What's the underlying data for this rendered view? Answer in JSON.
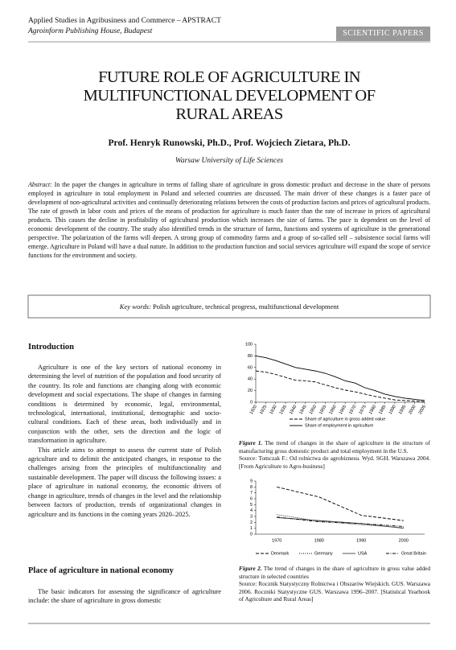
{
  "header": {
    "journal": "Applied Studies in Agribusiness and Commerce – APSTRACT",
    "publisher": "Agroinform Publishing House, Budapest",
    "section": "SCIENTIFIC PAPERS"
  },
  "title": "FUTURE ROLE OF AGRICULTURE IN MULTIFUNCTIONAL DEVELOPMENT OF RURAL AREAS",
  "authors": "Prof. Henryk Runowski, Ph.D., Prof. Wojciech Zietara, Ph.D.",
  "affiliation": "Warsaw University of Life Sciences",
  "abstract": {
    "label": "Abstract:",
    "text": "In the paper the changes in agriculture in terms of falling share of agriculture in gross domestic product and decrease in the share of persons employed in agriculture in total employment in Poland and selected countries are discussed. The main driver of these changes is a faster pace of development of non-agricultural activities and continually deteriorating relations between the costs of production factors and prices of agricultural products. The rate of growth in labor costs and prices of the means of production for agriculture is much faster than the rate of increase in prices of agricultural products. This causes the decline in profitability of agricultural production which increases the size of farms. The pace is dependent on the level of economic development of the country. The study also identified trends in the structure of farms, functions and systems of agriculture in the generational perspective. The polarization of the farms will deepen. A strong group of commodity farms and a group of so-called self – subsistence social farms will emerge. Agriculture in Poland will have a dual nature. In addition to the production function and social services agriculture will expand the scope of service functions for the environment and society."
  },
  "keywords": {
    "label": "Key words:",
    "text": "Polish agriculture, technical progress, multifunctional development"
  },
  "introduction": {
    "heading": "Introduction",
    "paragraphs": [
      "Agriculture is one of the key sectors of national economy in determining the level of nutrition of the population and food security of the country. Its role and functions are changing along with economic development and social expectations. The shape of changes in farming conditions is determined by economic, legal, environmental, technological, international, institutional, demographic and socio-cultural conditions. Each of these areas, both individually and in conjunction with the other, sets the direction and the logic of transformation in agriculture.",
      "This article aims to attempt to assess the current state of Polish agriculture and to delimit the anticipated changes, in response to the challenges arising from the principles of multifunctionality and sustainable development. The paper will discuss the following issues: a place of agriculture in national economy, the economic drivers of change in agriculture, trends of changes in the level and the relationship between factors of production, trends of organizational changes in agriculture and its functions in the coming years 2020–2025."
    ]
  },
  "section2": {
    "heading": "Place of agriculture in national economy",
    "paragraphs": [
      "The basic indicators for assessing the significance of agriculture include: the share of agriculture in gross domestic"
    ]
  },
  "figures": [
    {
      "label": "Figure 1.",
      "caption": "The trend of changes in the share of agriculture in the structure of manufacturing gross domestic product and total employment in the U.S.",
      "source": "Source: Tomczak F.: Od rolnictwa do agrobiznesu. Wyd. SGH. Warszawa 2004. [From Agriculture to Agro-business]"
    },
    {
      "label": "Figure 2.",
      "caption": "The trend of changes in the share of agriculture in gross value added structure in selected countries",
      "source": "Source: Rocznik Statystyczny Rolnictwa i Obszarów Wiejskich. GUS. Warszawa 2006. Roczniki Statystyczne GUS. Warszawa 1996–2007. [Statistical Yearbook of Agriculture and Rural Areas]"
    }
  ],
  "chart_data": [
    {
      "type": "line",
      "x": [
        1920,
        1925,
        1930,
        1935,
        1940,
        1945,
        1950,
        1955,
        1960,
        1965,
        1970,
        1975,
        1980,
        1985,
        1990,
        1995,
        2000,
        2005
      ],
      "xlim": [
        1920,
        2005
      ],
      "xticks": [
        1920,
        1925,
        1930,
        1935,
        1940,
        1945,
        1950,
        1955,
        1960,
        1965,
        1970,
        1975,
        1980,
        1985,
        1990,
        1995,
        2000,
        2005
      ],
      "ylim": [
        0,
        100
      ],
      "yticks": [
        0,
        20,
        40,
        60,
        80,
        100
      ],
      "grid": false,
      "series": [
        {
          "name": "Share of agriculture in gross added value",
          "color": "#000000",
          "dash": "dashed",
          "values": [
            54,
            52,
            48,
            43,
            38,
            37,
            35,
            30,
            25,
            21,
            18,
            14,
            10,
            7,
            4,
            3,
            2,
            1
          ]
        },
        {
          "name": "Share of employment in agriculture",
          "color": "#000000",
          "dash": "solid",
          "values": [
            80,
            77,
            72,
            66,
            60,
            57,
            54,
            50,
            44,
            37,
            33,
            25,
            20,
            14,
            10,
            7,
            5,
            3
          ]
        }
      ]
    },
    {
      "type": "line",
      "categories": [
        "1970",
        "1980",
        "1990",
        "2000"
      ],
      "ylim": [
        0,
        9
      ],
      "yticks": [
        0,
        1,
        2,
        3,
        4,
        5,
        6,
        7,
        8,
        9
      ],
      "grid": false,
      "series": [
        {
          "name": "Denmark",
          "color": "#000000",
          "dash": "dashed",
          "values": [
            8,
            6.3,
            3.2,
            2.3
          ]
        },
        {
          "name": "Germany",
          "color": "#000000",
          "dash": "dotted",
          "values": [
            3.3,
            2.2,
            1.6,
            1.1
          ]
        },
        {
          "name": "USA",
          "color": "#444444",
          "dash": "solid",
          "values": [
            2.8,
            2.3,
            1.8,
            1.0
          ]
        },
        {
          "name": "Great Britain",
          "color": "#000000",
          "dash": "dashdot",
          "values": [
            2.9,
            2.1,
            1.8,
            1.3
          ]
        }
      ]
    }
  ]
}
